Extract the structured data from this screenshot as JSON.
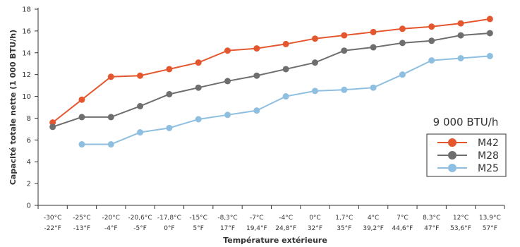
{
  "chart_data": {
    "type": "line",
    "xlabel": "Température extérieure",
    "ylabel": "Capacité totale nette (1 000 BTU/h)",
    "ylim": [
      0,
      18
    ],
    "yticks": [
      "0",
      "2",
      "4",
      "6",
      "8",
      "10",
      "12",
      "14",
      "16",
      "18"
    ],
    "grid": false,
    "categories_c": [
      "-30°C",
      "-25°C",
      "-20°C",
      "-20,6°C",
      "-17,8°C",
      "-15°C",
      "-8,3°C",
      "-7°C",
      "-4°C",
      "0°C",
      "1,7°C",
      "4°C",
      "7°C",
      "8,3°C",
      "12°C",
      "13,9°C"
    ],
    "categories_f": [
      "-22°F",
      "-13°F",
      "-4°F",
      "-5°F",
      "0°F",
      "5°F",
      "17°F",
      "19,4°F",
      "24,8°F",
      "32°F",
      "35°F",
      "39,2°F",
      "44,6°F",
      "47°F",
      "53,6°F",
      "57°F"
    ],
    "legend": {
      "title": "9 000 BTU/h",
      "placement": "right"
    },
    "series": [
      {
        "name": "M42",
        "color": "#e4572e",
        "values": [
          7.6,
          9.7,
          11.8,
          11.9,
          12.5,
          13.1,
          14.2,
          14.4,
          14.8,
          15.3,
          15.6,
          15.9,
          16.2,
          16.4,
          16.7,
          17.1
        ]
      },
      {
        "name": "M28",
        "color": "#6e6e6e",
        "values": [
          7.2,
          8.1,
          8.1,
          9.1,
          10.2,
          10.8,
          11.4,
          11.9,
          12.5,
          13.1,
          14.2,
          14.5,
          14.9,
          15.1,
          15.6,
          15.8
        ]
      },
      {
        "name": "M25",
        "color": "#8fbfe0",
        "values": [
          null,
          5.6,
          5.6,
          6.7,
          7.1,
          7.9,
          8.3,
          8.7,
          10.0,
          10.5,
          10.6,
          10.8,
          12.0,
          13.3,
          13.5,
          13.7
        ]
      }
    ]
  }
}
